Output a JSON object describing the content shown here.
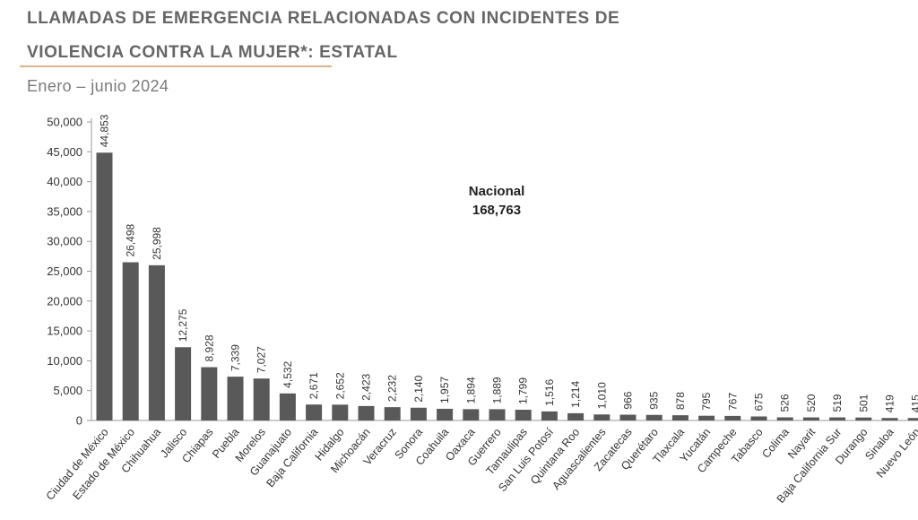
{
  "title_line1": "LLAMADAS DE EMERGENCIA RELACIONADAS CON INCIDENTES DE",
  "title_line2": "VIOLENCIA CONTRA LA MUJER*: ESTATAL",
  "subtitle": "Enero – junio 2024",
  "annotation": {
    "label": "Nacional",
    "value": "168,763"
  },
  "colors": {
    "bar": "#595959",
    "axis": "#9a9a9a",
    "text": "#333333",
    "title": "#666666",
    "accent": "#d9b48a"
  },
  "chart_data": {
    "type": "bar",
    "title": "LLAMADAS DE EMERGENCIA RELACIONADAS CON INCIDENTES DE VIOLENCIA CONTRA LA MUJER*: ESTATAL",
    "subtitle": "Enero – junio 2024",
    "xlabel": "",
    "ylabel": "",
    "ylim": [
      0,
      50000
    ],
    "yticks": [
      0,
      5000,
      10000,
      15000,
      20000,
      25000,
      30000,
      35000,
      40000,
      45000,
      50000
    ],
    "ytick_labels": [
      "0",
      "5,000",
      "10,000",
      "15,000",
      "20,000",
      "25,000",
      "30,000",
      "35,000",
      "40,000",
      "45,000",
      "50,000"
    ],
    "grid": false,
    "legend": "none",
    "categories": [
      "Ciudad de México",
      "Estado de México",
      "Chihuahua",
      "Jalisco",
      "Chiapas",
      "Puebla",
      "Morelos",
      "Guanajuato",
      "Baja California",
      "Hidalgo",
      "Michoacán",
      "Veracruz",
      "Sonora",
      "Coahuila",
      "Oaxaca",
      "Guerrero",
      "Tamaulipas",
      "San Luis Potosí",
      "Quintana Roo",
      "Aguascalientes",
      "Zacatecas",
      "Querétaro",
      "Tlaxcala",
      "Yucatán",
      "Campeche",
      "Tabasco",
      "Colima",
      "Nayarit",
      "Baja California Sur",
      "Durango",
      "Sinaloa",
      "Nuevo León"
    ],
    "values": [
      44853,
      26498,
      25998,
      12275,
      8928,
      7339,
      7027,
      4532,
      2671,
      2652,
      2423,
      2232,
      2140,
      1957,
      1894,
      1889,
      1799,
      1516,
      1214,
      1010,
      966,
      935,
      878,
      795,
      767,
      675,
      526,
      520,
      519,
      501,
      419,
      415
    ],
    "value_labels": [
      "44,853",
      "26,498",
      "25,998",
      "12,275",
      "8,928",
      "7,339",
      "7,027",
      "4,532",
      "2,671",
      "2,652",
      "2,423",
      "2,232",
      "2,140",
      "1,957",
      "1,894",
      "1,889",
      "1,799",
      "1,516",
      "1,214",
      "1,010",
      "966",
      "935",
      "878",
      "795",
      "767",
      "675",
      "526",
      "520",
      "519",
      "501",
      "419",
      "415"
    ]
  }
}
